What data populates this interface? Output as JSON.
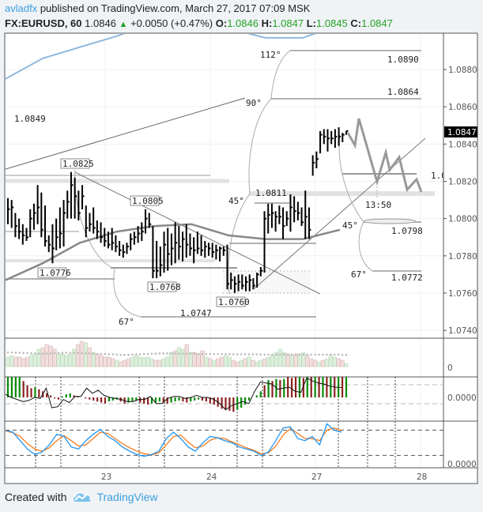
{
  "header": {
    "author": "avladfx",
    "published_text": "published on TradingView.com, March 27, 2017 07:09 MSK",
    "symbol": "FX:EURUSD, 60",
    "last": "1.0846",
    "change": "+0.0050 (+0.47%)",
    "o_label": "O:",
    "o": "1.0846",
    "h_label": "H:",
    "h": "1.0847",
    "l_label": "L:",
    "l": "1.0845",
    "c_label": "C:",
    "c": "1.0847",
    "up_icon": "triangle-up-icon"
  },
  "footer": {
    "created_with": "Created with",
    "brand": "TradingView",
    "logo_icon": "tradingview-cloud-icon"
  },
  "colors": {
    "up": "#22a222",
    "macd_up": "#0a8a0a",
    "macd_down": "#8b2222",
    "stoch_k": "#2196f3",
    "stoch_d": "#f57c1f",
    "ma_blue": "#8fb8e0",
    "ma_grey": "#888888",
    "last_price_bg": "#000000"
  },
  "chart_data": {
    "type": "ohlc",
    "x_ticks": [
      "23",
      "24",
      "27",
      "28"
    ],
    "y_ticks": [
      "1.0880",
      "1.0860",
      "1.0840",
      "1.0820",
      "1.0800",
      "1.0780",
      "1.0760",
      "1.0740"
    ],
    "ylim": [
      1.0736,
      1.0899
    ],
    "grid": true,
    "last_price": "1.0847",
    "bars": [
      [
        1.0811,
        1.0797,
        1.0805
      ],
      [
        1.081,
        1.0795,
        1.0806
      ],
      [
        1.0803,
        1.079,
        1.0796
      ],
      [
        1.08,
        1.0789,
        1.0793
      ],
      [
        1.0797,
        1.0786,
        1.0791
      ],
      [
        1.0795,
        1.0788,
        1.079
      ],
      [
        1.0805,
        1.079,
        1.08
      ],
      [
        1.0808,
        1.0794,
        1.0803
      ],
      [
        1.0818,
        1.0797,
        1.0806
      ],
      [
        1.0814,
        1.079,
        1.0794
      ],
      [
        1.0807,
        1.0785,
        1.0788
      ],
      [
        1.0791,
        1.0782,
        1.0786
      ],
      [
        1.0797,
        1.0776,
        1.0784
      ],
      [
        1.08,
        1.0783,
        1.079
      ],
      [
        1.0806,
        1.0784,
        1.0792
      ],
      [
        1.081,
        1.0785,
        1.0803
      ],
      [
        1.0815,
        1.08,
        1.0809
      ],
      [
        1.0825,
        1.08,
        1.0818
      ],
      [
        1.0822,
        1.08,
        1.0812
      ],
      [
        1.0815,
        1.0799,
        1.0803
      ],
      [
        1.0818,
        1.0805,
        1.0812
      ],
      [
        1.0807,
        1.079,
        1.0795
      ],
      [
        1.0803,
        1.0793,
        1.0797
      ],
      [
        1.0806,
        1.0792,
        1.0795
      ],
      [
        1.0799,
        1.0789,
        1.0793
      ],
      [
        1.0798,
        1.0787,
        1.079
      ],
      [
        1.0795,
        1.0785,
        1.0788
      ],
      [
        1.0793,
        1.0784,
        1.0786
      ],
      [
        1.0795,
        1.0783,
        1.0787
      ],
      [
        1.0791,
        1.0782,
        1.0785
      ],
      [
        1.0788,
        1.078,
        1.0783
      ],
      [
        1.0786,
        1.0779,
        1.0782
      ],
      [
        1.0787,
        1.0781,
        1.0785
      ],
      [
        1.0792,
        1.0783,
        1.0789
      ],
      [
        1.0793,
        1.0786,
        1.079
      ],
      [
        1.0796,
        1.0787,
        1.0792
      ],
      [
        1.0798,
        1.0788,
        1.0793
      ],
      [
        1.0805,
        1.0792,
        1.08
      ],
      [
        1.0803,
        1.0795,
        1.0797
      ],
      [
        1.0796,
        1.0768,
        1.0772
      ],
      [
        1.0788,
        1.0768,
        1.0772
      ],
      [
        1.0785,
        1.0769,
        1.0775
      ],
      [
        1.0793,
        1.0771,
        1.0786
      ],
      [
        1.0795,
        1.0772,
        1.0781
      ],
      [
        1.0792,
        1.0775,
        1.0784
      ],
      [
        1.0798,
        1.0776,
        1.0787
      ],
      [
        1.0796,
        1.0778,
        1.0785
      ],
      [
        1.0793,
        1.0777,
        1.0789
      ],
      [
        1.0797,
        1.0779,
        1.0786
      ],
      [
        1.0792,
        1.078,
        1.0784
      ],
      [
        1.079,
        1.0776,
        1.0783
      ],
      [
        1.0793,
        1.0781,
        1.0784
      ],
      [
        1.0791,
        1.078,
        1.0783
      ],
      [
        1.0788,
        1.0779,
        1.0785
      ],
      [
        1.0787,
        1.078,
        1.0784
      ],
      [
        1.0787,
        1.0779,
        1.0782
      ],
      [
        1.0786,
        1.0778,
        1.0783
      ],
      [
        1.0785,
        1.0777,
        1.0784
      ],
      [
        1.0785,
        1.078,
        1.0783
      ],
      [
        1.0786,
        1.0762,
        1.0765
      ],
      [
        1.0771,
        1.0762,
        1.0767
      ],
      [
        1.0769,
        1.076,
        1.0765
      ],
      [
        1.077,
        1.0761,
        1.0766
      ],
      [
        1.077,
        1.0762,
        1.0764
      ],
      [
        1.0769,
        1.0761,
        1.0766
      ],
      [
        1.077,
        1.0761,
        1.0767
      ],
      [
        1.0768,
        1.0762,
        1.0764
      ],
      [
        1.0771,
        1.0763,
        1.077
      ],
      [
        1.0774,
        1.0769,
        1.0772
      ],
      [
        1.0804,
        1.0771,
        1.08
      ],
      [
        1.0808,
        1.0792,
        1.0802
      ],
      [
        1.0808,
        1.0795,
        1.0803
      ],
      [
        1.0804,
        1.0793,
        1.0801
      ],
      [
        1.0807,
        1.0797,
        1.0801
      ],
      [
        1.0806,
        1.0789,
        1.0796
      ],
      [
        1.0804,
        1.0796,
        1.08
      ],
      [
        1.0813,
        1.0793,
        1.0806
      ],
      [
        1.0812,
        1.0798,
        1.0804
      ],
      [
        1.0809,
        1.0799,
        1.0803
      ],
      [
        1.0806,
        1.0796,
        1.0798
      ],
      [
        1.0815,
        1.0789,
        1.0801
      ],
      [
        1.0806,
        1.0789,
        1.0794
      ],
      [
        1.0834,
        1.0823,
        1.083
      ],
      [
        1.0836,
        1.0827,
        1.0832
      ],
      [
        1.0847,
        1.0835,
        1.0845
      ],
      [
        1.0848,
        1.084,
        1.0844
      ],
      [
        1.0848,
        1.0836,
        1.0843
      ],
      [
        1.0847,
        1.084,
        1.0843
      ],
      [
        1.0848,
        1.0838,
        1.0844
      ],
      [
        1.0849,
        1.0839,
        1.0844
      ],
      [
        1.0846,
        1.0841,
        1.0845
      ],
      [
        1.0847,
        1.0845,
        1.0847
      ]
    ],
    "ma_blue": [
      1.0875,
      1.0886,
      1.0892,
      1.0898,
      1.0905,
      1.0908,
      1.0902,
      1.0897,
      1.0897,
      1.0904
    ],
    "ma_grey": [
      1.0767,
      1.0776,
      1.0787,
      1.0793,
      1.0796,
      1.0797,
      1.0791,
      1.0789,
      1.0789,
      1.0794
    ],
    "volume": {
      "zero_label": "0",
      "values": [
        30,
        35,
        30,
        30,
        25,
        30,
        35,
        40,
        55,
        60,
        70,
        65,
        55,
        40,
        40,
        35,
        40,
        55,
        70,
        80,
        75,
        60,
        45,
        40,
        35,
        30,
        30,
        25,
        20,
        15,
        20,
        25,
        30,
        35,
        30,
        28,
        30,
        25,
        20,
        20,
        25,
        30,
        45,
        50,
        60,
        55,
        70,
        45,
        45,
        40,
        50,
        30,
        25,
        20,
        25,
        30,
        35,
        30,
        20,
        15,
        20,
        25,
        30,
        20,
        15,
        20,
        25,
        30,
        35,
        45,
        55,
        45,
        40,
        35,
        40,
        40,
        45,
        35,
        25,
        20,
        15,
        20,
        25,
        35,
        30,
        25,
        20,
        10
      ],
      "average": [
        45,
        45,
        44,
        44,
        43,
        43,
        42,
        42,
        41,
        41,
        42,
        42,
        43,
        43,
        44,
        44,
        44,
        44,
        43,
        43,
        42,
        42,
        41,
        40,
        40,
        40,
        39,
        39,
        38,
        37,
        37,
        37,
        38,
        39,
        39,
        40,
        40,
        41,
        41,
        42,
        42,
        42,
        42,
        42,
        41,
        41,
        41,
        41,
        41,
        40,
        40,
        40,
        40,
        40,
        40,
        40,
        40,
        39,
        39,
        39,
        39,
        39,
        39,
        39,
        39,
        38,
        38,
        38,
        38,
        38,
        38,
        38,
        38,
        38,
        38,
        38,
        38,
        38,
        38,
        38,
        38,
        38,
        38,
        38,
        38,
        38,
        37,
        37
      ]
    },
    "macd": {
      "zero_label": "0.0000",
      "histogram": [
        1.0,
        1.0,
        1.0,
        1.0,
        0.8,
        0.6,
        0.45,
        0.5,
        0.4,
        0.3,
        0.2,
        0.1,
        -0.05,
        -0.1,
        0.05,
        0.15,
        0.2,
        0.1,
        0.05,
        0.0,
        -0.05,
        -0.1,
        -0.15,
        -0.2,
        -0.25,
        -0.3,
        -0.2,
        -0.15,
        -0.1,
        -0.2,
        -0.3,
        -0.25,
        -0.2,
        -0.15,
        -0.25,
        -0.3,
        -0.35,
        -0.3,
        -0.25,
        -0.2,
        -0.25,
        -0.3,
        -0.25,
        -0.2,
        -0.15,
        -0.2,
        -0.25,
        -0.2,
        -0.15,
        -0.1,
        -0.15,
        -0.2,
        -0.3,
        -0.35,
        -0.45,
        -0.55,
        -0.6,
        -0.65,
        -0.7,
        -0.6,
        -0.5,
        -0.35,
        -0.15,
        0.0,
        0.1,
        0.3,
        0.6,
        0.85,
        0.8,
        0.9,
        0.85,
        0.9,
        1.0,
        0.95,
        1.0,
        1.0,
        0.95,
        1.0,
        1.0,
        1.0,
        1.0,
        1.0,
        1.0,
        1.0,
        1.0,
        1.0,
        1.0,
        1.0
      ],
      "line": [
        0.15,
        0.0,
        -0.1,
        -0.2,
        -0.15,
        0.0,
        -0.05,
        0.45,
        -0.5,
        -0.45,
        -0.1,
        -0.25,
        0.05,
        0.05,
        0.45,
        0.2,
        0.35,
        0.1,
        0.0,
        -0.05,
        -0.1,
        -0.2,
        -0.2,
        -0.1,
        -0.1,
        0.05,
        -0.3,
        -0.3,
        -0.05,
        0.05,
        0.05,
        -0.05,
        0.0,
        0.1,
        0.0,
        0.0,
        -0.1,
        -0.3,
        -0.6,
        -0.4,
        -0.3,
        -0.2,
        -0.3,
        0.3,
        0.75,
        0.7,
        0.65,
        0.4,
        0.45,
        0.5,
        0.3,
        0.25,
        0.95,
        0.8,
        0.7,
        0.65,
        0.55,
        0.5,
        0.48
      ]
    },
    "stochastic": {
      "zero_label": "0.0000",
      "k": [
        80,
        75,
        55,
        35,
        22,
        28,
        45,
        70,
        65,
        40,
        35,
        55,
        70,
        82,
        65,
        55,
        40,
        30,
        22,
        18,
        22,
        30,
        60,
        75,
        60,
        40,
        30,
        50,
        65,
        62,
        55,
        50,
        40,
        35,
        30,
        20,
        28,
        55,
        85,
        88,
        60,
        55,
        65,
        45,
        95,
        80,
        75
      ],
      "d": [
        78,
        74,
        65,
        48,
        35,
        30,
        38,
        55,
        67,
        55,
        42,
        45,
        60,
        75,
        72,
        60,
        48,
        38,
        30,
        24,
        21,
        26,
        45,
        65,
        68,
        52,
        38,
        42,
        56,
        62,
        60,
        52,
        45,
        38,
        32,
        24,
        26,
        42,
        68,
        84,
        72,
        60,
        60,
        55,
        80,
        85,
        78
      ]
    },
    "annotations": {
      "level_labels": [
        "1.0849",
        "1.0747",
        "1.0890",
        "1.0864",
        "1.0798",
        "1.0772",
        "1.0811",
        "1.0"
      ],
      "boxed_labels": [
        "1.0825",
        "1.0805",
        "1.0776",
        "1.0768",
        "1.0760"
      ],
      "angles": [
        "112°",
        "90°",
        "45°",
        "45°",
        "67°",
        "67°"
      ],
      "time_label": "13:50"
    }
  }
}
